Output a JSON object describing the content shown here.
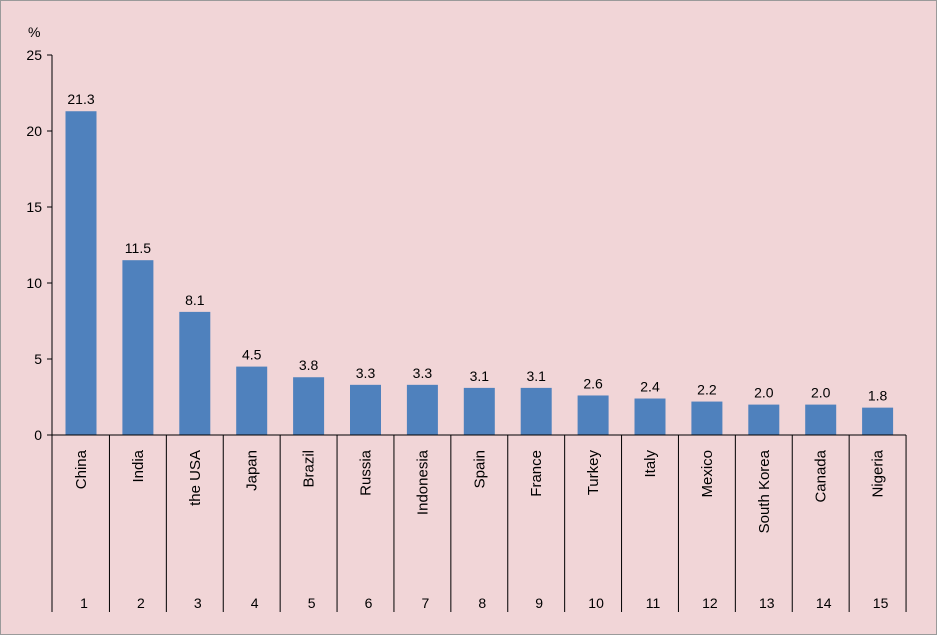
{
  "chart_data": {
    "type": "bar",
    "ylabel": "%",
    "ylim": [
      0,
      25
    ],
    "yticks": [
      0,
      5,
      10,
      15,
      20,
      25
    ],
    "categories": [
      "China",
      "India",
      "the USA",
      "Japan",
      "Brazil",
      "Russia",
      "Indonesia",
      "Spain",
      "France",
      "Turkey",
      "Italy",
      "Mexico",
      "South Korea",
      "Canada",
      "Nigeria"
    ],
    "ranks": [
      "1",
      "2",
      "3",
      "4",
      "5",
      "6",
      "7",
      "8",
      "9",
      "10",
      "11",
      "12",
      "13",
      "14",
      "15"
    ],
    "values": [
      21.3,
      11.5,
      8.1,
      4.5,
      3.8,
      3.3,
      3.3,
      3.1,
      3.1,
      2.6,
      2.4,
      2.2,
      2.0,
      2.0,
      1.8
    ],
    "value_labels": [
      "21.3",
      "11.5",
      "8.1",
      "4.5",
      "3.8",
      "3.3",
      "3.3",
      "3.1",
      "3.1",
      "2.6",
      "2.4",
      "2.2",
      "2.0",
      "2.0",
      "1.8"
    ],
    "bar_color": "#4f81bd",
    "background_color": "#f1d5d7",
    "grid": false,
    "legend": "none"
  }
}
